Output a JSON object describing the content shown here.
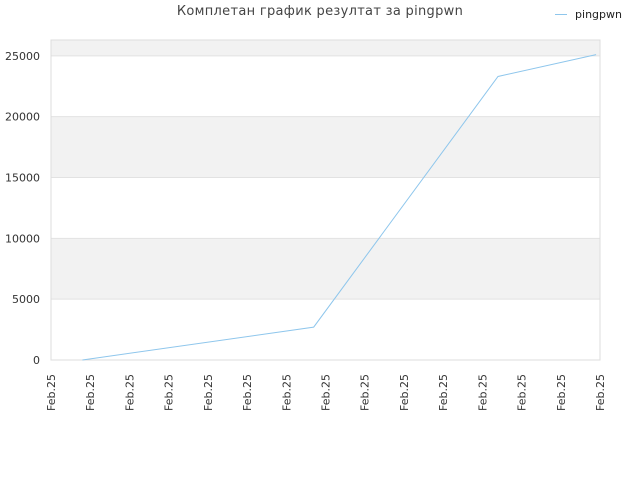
{
  "chart_data": {
    "type": "line",
    "title": "Комплетан график резултат за pingpwn",
    "xlabel": "",
    "ylabel": "",
    "x_tick_labels": [
      "Feb.25",
      "Feb.25",
      "Feb.25",
      "Feb.25",
      "Feb.25",
      "Feb.25",
      "Feb.25",
      "Feb.25",
      "Feb.25",
      "Feb.25",
      "Feb.25",
      "Feb.25",
      "Feb.25",
      "Feb.25",
      "Feb.25"
    ],
    "y_ticks": [
      0,
      5000,
      10000,
      15000,
      20000,
      25000
    ],
    "ylim": [
      0,
      26300
    ],
    "grid": true,
    "legend_position": "top-right",
    "series": [
      {
        "name": "pingpwn",
        "color": "#8ec6ec",
        "x_index": [
          0.8,
          6.7,
          11.4,
          13.9
        ],
        "values": [
          0,
          2700,
          23300,
          25100
        ]
      }
    ]
  }
}
